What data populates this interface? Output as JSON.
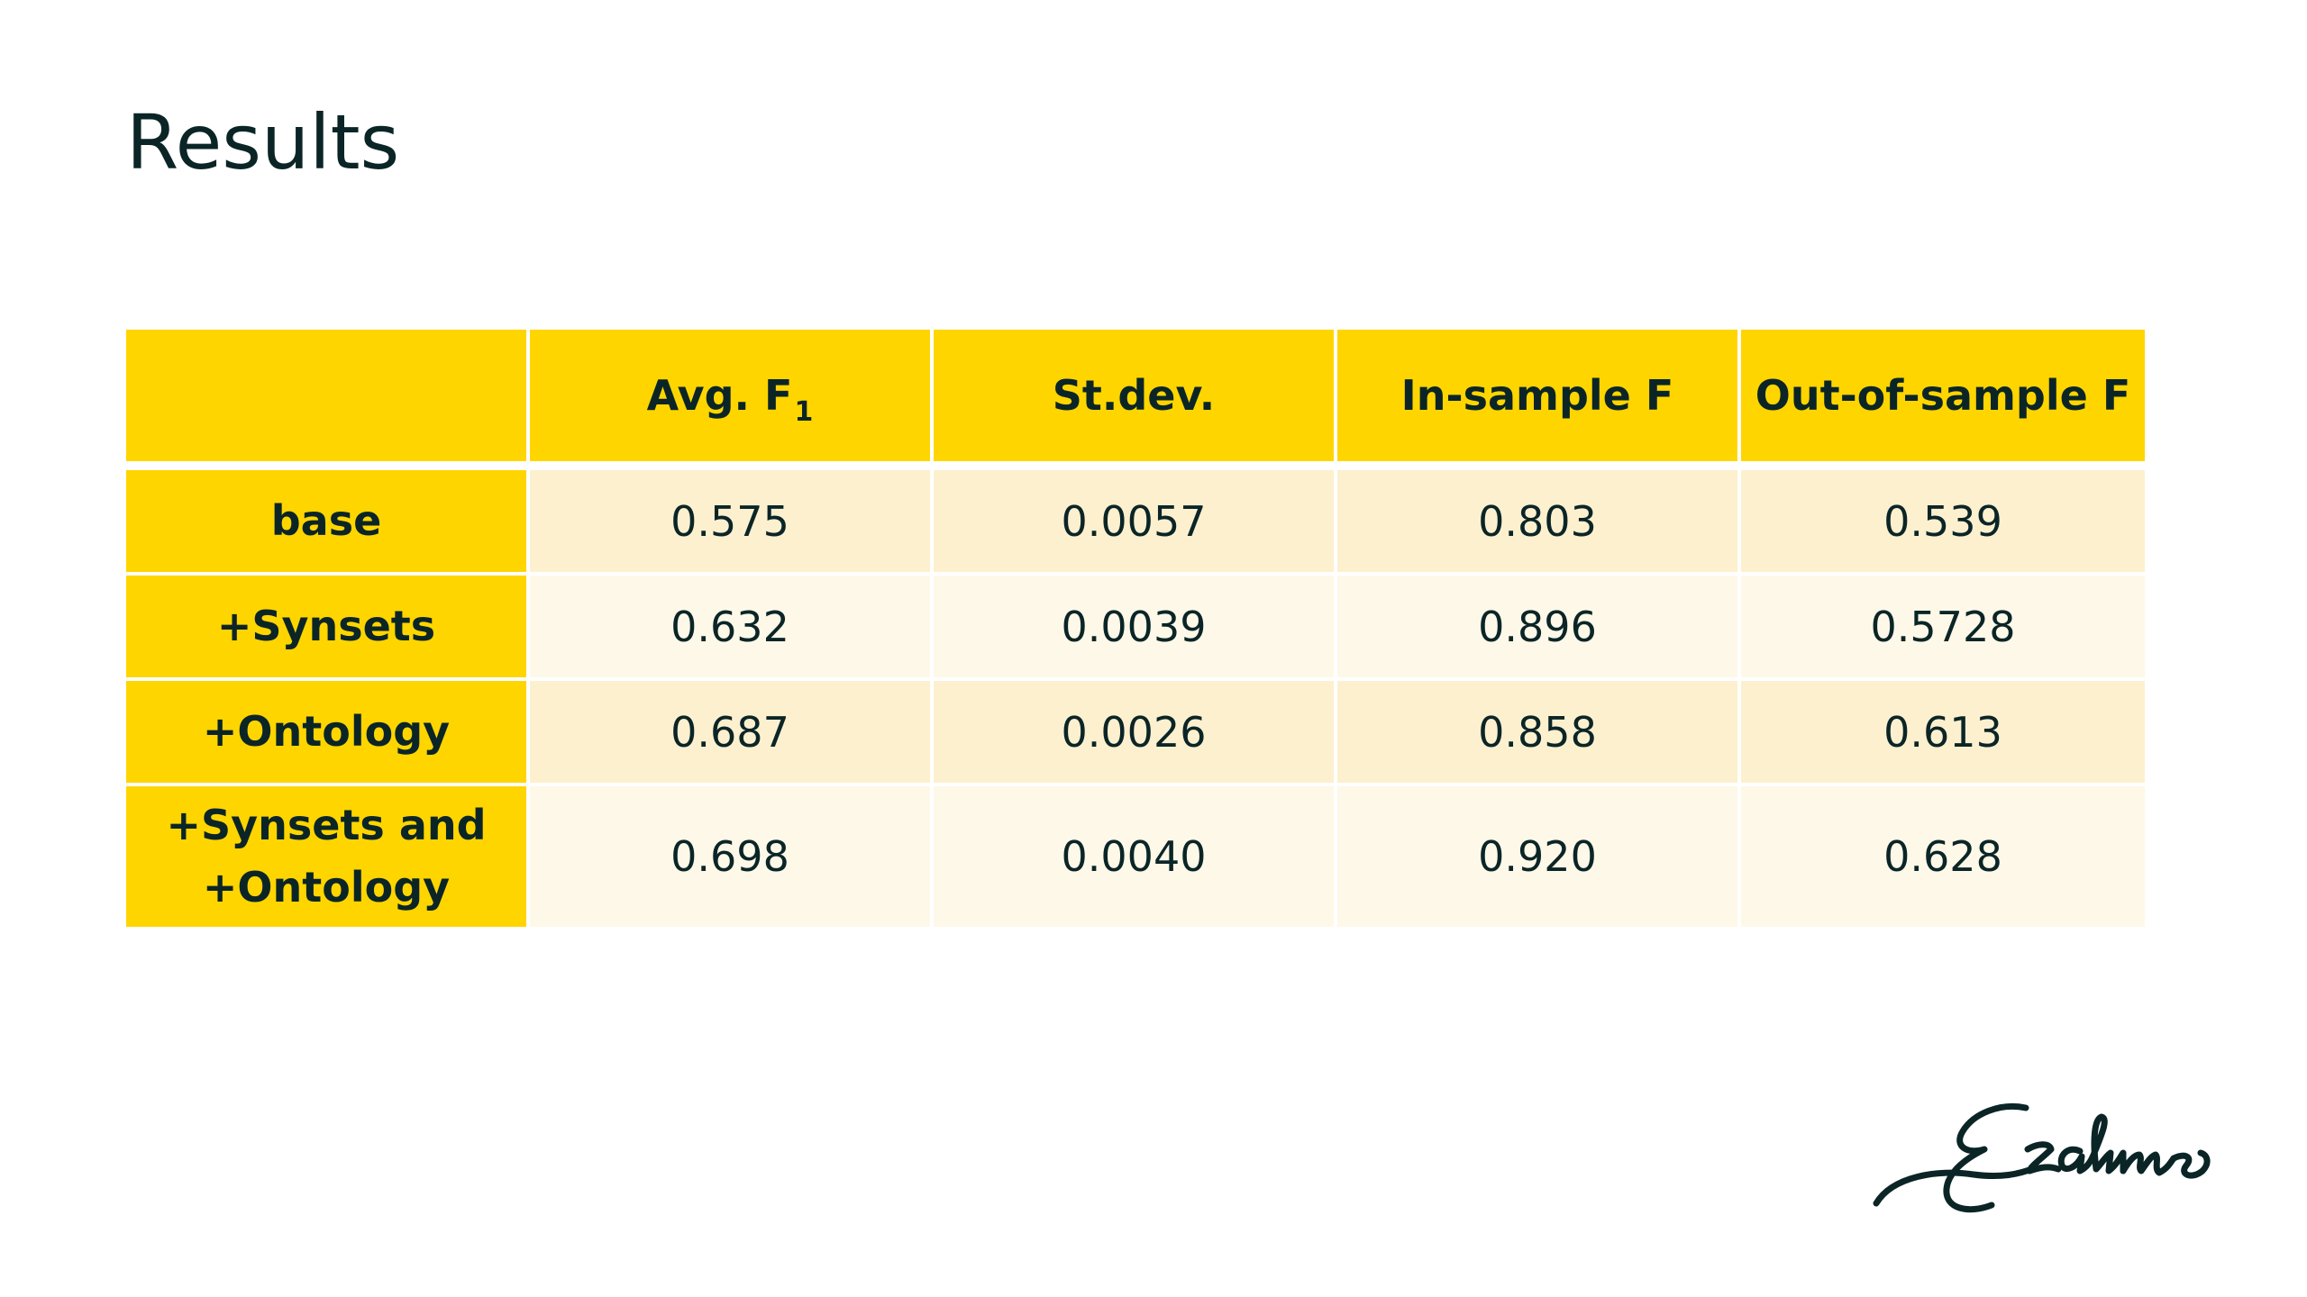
{
  "slide": {
    "title": "Results"
  },
  "table": {
    "headers": {
      "corner": "",
      "avg_f1_main": "Avg. F",
      "avg_f1_sub": "1",
      "stdev": "St.dev.",
      "in_sample": "In-sample F",
      "out_of_sample": "Out-of-sample F"
    },
    "rows": [
      {
        "label": "base",
        "avg_f1": "0.575",
        "stdev": "0.0057",
        "in_sample": "0.803",
        "out_of_sample": "0.539"
      },
      {
        "label": "+Synsets",
        "avg_f1": "0.632",
        "stdev": "0.0039",
        "in_sample": "0.896",
        "out_of_sample": "0.5728"
      },
      {
        "label": "+Ontology",
        "avg_f1": "0.687",
        "stdev": "0.0026",
        "in_sample": "0.858",
        "out_of_sample": "0.613"
      },
      {
        "label": "+Synsets and +Ontology",
        "avg_f1": "0.698",
        "stdev": "0.0040",
        "in_sample": "0.920",
        "out_of_sample": "0.628"
      }
    ]
  },
  "colors": {
    "header_yellow": "#ffd500",
    "row_tint_dark": "#fdf0cf",
    "row_tint_light": "#fef8e8",
    "text_dark": "#0b2527"
  },
  "logo": {
    "icon": "erasmus-signature-logo",
    "text": "Erasmus"
  }
}
